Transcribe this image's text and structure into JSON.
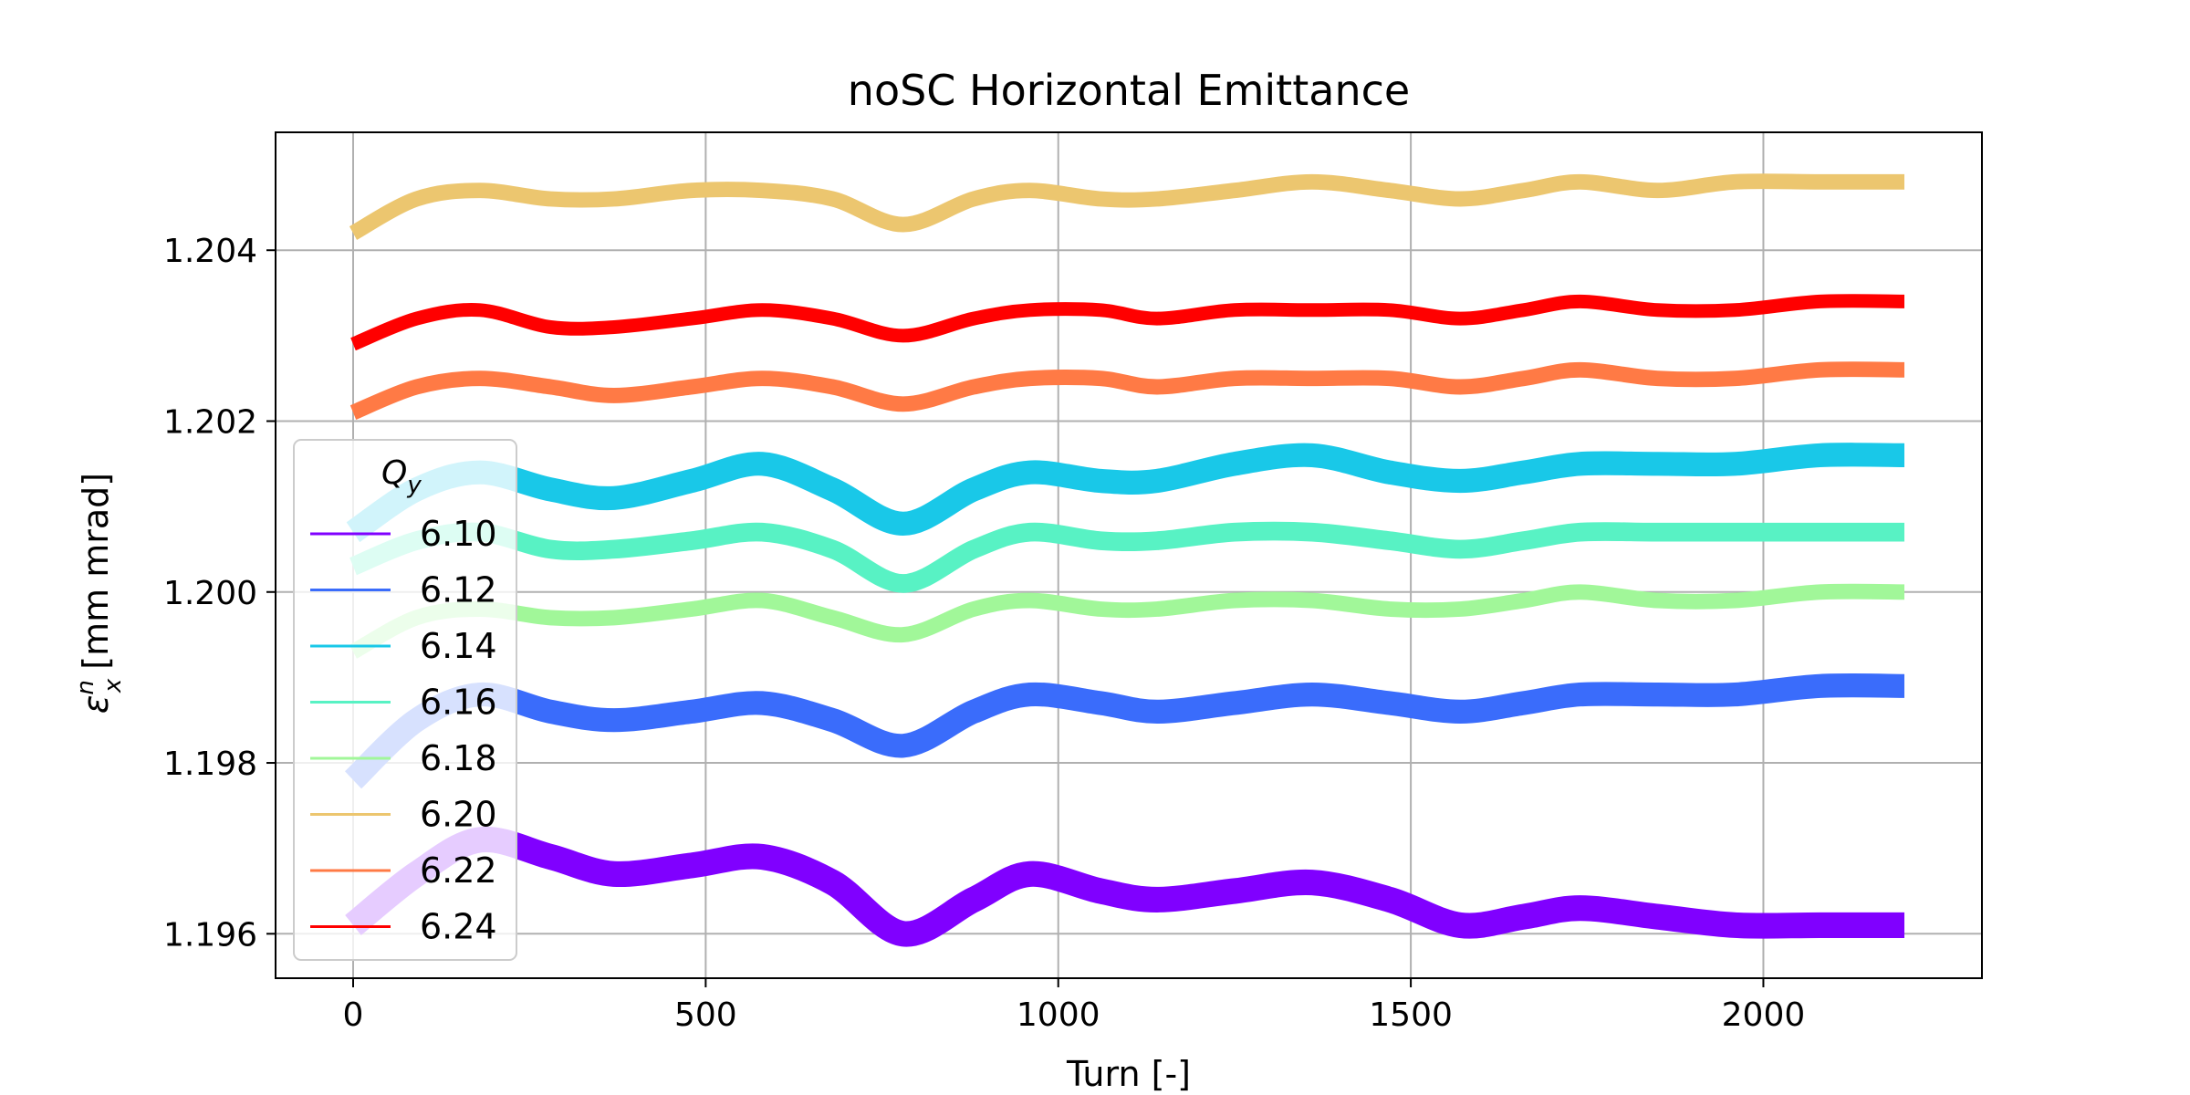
{
  "chart_data": {
    "type": "line",
    "title": "noSC Horizontal Emittance",
    "xlabel": "Turn [-]",
    "ylabel": "[mm mrad]",
    "ylabel_symbol": "ε",
    "ylabel_sup": "n",
    "ylabel_sub": "x",
    "xlim": [
      -110,
      2310
    ],
    "ylim": [
      1.19548,
      1.20538
    ],
    "xticks": [
      0,
      500,
      1000,
      1500,
      2000
    ],
    "xtick_labels": [
      "0",
      "500",
      "1000",
      "1500",
      "2000"
    ],
    "yticks": [
      1.196,
      1.198,
      1.2,
      1.202,
      1.204
    ],
    "ytick_labels": [
      "1.196",
      "1.198",
      "1.200",
      "1.202",
      "1.204"
    ],
    "grid": true,
    "legend": {
      "title": "Q",
      "title_sub": "y",
      "placement": "lower-left"
    },
    "series": [
      {
        "name": "6.10",
        "color": "#8000ff",
        "x": [
          0,
          90,
          180,
          280,
          370,
          480,
          580,
          680,
          780,
          880,
          960,
          1060,
          1140,
          1250,
          1360,
          1470,
          1570,
          1660,
          1740,
          1850,
          1960,
          2080,
          2200
        ],
        "values": [
          1.1961,
          1.1967,
          1.1971,
          1.1969,
          1.1967,
          1.1968,
          1.1969,
          1.1966,
          1.196,
          1.1964,
          1.1967,
          1.1965,
          1.1964,
          1.1965,
          1.1966,
          1.1964,
          1.1961,
          1.1962,
          1.1963,
          1.1962,
          1.1961,
          1.1961,
          1.1961
        ],
        "band": 0.0003
      },
      {
        "name": "6.12",
        "color": "#3a6cfb",
        "x": [
          0,
          90,
          180,
          280,
          370,
          480,
          580,
          680,
          780,
          880,
          960,
          1060,
          1140,
          1250,
          1360,
          1470,
          1570,
          1660,
          1740,
          1850,
          1960,
          2080,
          2200
        ],
        "values": [
          1.1978,
          1.1985,
          1.1988,
          1.1986,
          1.1985,
          1.1986,
          1.1987,
          1.1985,
          1.1982,
          1.1986,
          1.1988,
          1.1987,
          1.1986,
          1.1987,
          1.1988,
          1.1987,
          1.1986,
          1.1987,
          1.1988,
          1.1988,
          1.1988,
          1.1989,
          1.1989
        ],
        "band": 0.00028
      },
      {
        "name": "6.14",
        "color": "#19c8e8",
        "x": [
          0,
          90,
          180,
          280,
          370,
          480,
          580,
          680,
          780,
          880,
          960,
          1060,
          1140,
          1250,
          1360,
          1470,
          1570,
          1660,
          1740,
          1850,
          1960,
          2080,
          2200
        ],
        "values": [
          1.2007,
          1.2012,
          1.2014,
          1.2012,
          1.2011,
          1.2013,
          1.2015,
          1.2012,
          1.2008,
          1.2012,
          1.2014,
          1.2013,
          1.2013,
          1.2015,
          1.2016,
          1.2014,
          1.2013,
          1.2014,
          1.2015,
          1.2015,
          1.2015,
          1.2016,
          1.2016
        ],
        "band": 0.00028
      },
      {
        "name": "6.16",
        "color": "#58f2c4",
        "x": [
          0,
          90,
          180,
          280,
          370,
          480,
          580,
          680,
          780,
          880,
          960,
          1060,
          1140,
          1250,
          1360,
          1470,
          1570,
          1660,
          1740,
          1850,
          1960,
          2080,
          2200
        ],
        "values": [
          1.2003,
          1.2006,
          1.2007,
          1.2005,
          1.2005,
          1.2006,
          1.2007,
          1.2005,
          1.2001,
          1.2005,
          1.2007,
          1.2006,
          1.2006,
          1.2007,
          1.2007,
          1.2006,
          1.2005,
          1.2006,
          1.2007,
          1.2007,
          1.2007,
          1.2007,
          1.2007
        ],
        "band": 0.00022
      },
      {
        "name": "6.18",
        "color": "#a1f799",
        "x": [
          0,
          90,
          180,
          280,
          370,
          480,
          580,
          680,
          780,
          880,
          960,
          1060,
          1140,
          1250,
          1360,
          1470,
          1570,
          1660,
          1740,
          1850,
          1960,
          2080,
          2200
        ],
        "values": [
          1.1993,
          1.1997,
          1.1998,
          1.1997,
          1.1997,
          1.1998,
          1.1999,
          1.1997,
          1.1995,
          1.1998,
          1.1999,
          1.1998,
          1.1998,
          1.1999,
          1.1999,
          1.1998,
          1.1998,
          1.1999,
          1.2,
          1.1999,
          1.1999,
          1.2,
          1.2
        ],
        "band": 0.00018
      },
      {
        "name": "6.20",
        "color": "#ecc66f",
        "x": [
          0,
          90,
          180,
          280,
          370,
          480,
          580,
          680,
          780,
          880,
          960,
          1060,
          1140,
          1250,
          1360,
          1470,
          1570,
          1660,
          1740,
          1850,
          1960,
          2080,
          2200
        ],
        "values": [
          1.2042,
          1.2046,
          1.2047,
          1.2046,
          1.2046,
          1.2047,
          1.2047,
          1.2046,
          1.2043,
          1.2046,
          1.2047,
          1.2046,
          1.2046,
          1.2047,
          1.2048,
          1.2047,
          1.2046,
          1.2047,
          1.2048,
          1.2047,
          1.2048,
          1.2048,
          1.2048
        ],
        "band": 0.00018
      },
      {
        "name": "6.22",
        "color": "#ff7a45",
        "x": [
          0,
          90,
          180,
          280,
          370,
          480,
          580,
          680,
          780,
          880,
          960,
          1060,
          1140,
          1250,
          1360,
          1470,
          1570,
          1660,
          1740,
          1850,
          1960,
          2080,
          2200
        ],
        "values": [
          1.2021,
          1.2024,
          1.2025,
          1.2024,
          1.2023,
          1.2024,
          1.2025,
          1.2024,
          1.2022,
          1.2024,
          1.2025,
          1.2025,
          1.2024,
          1.2025,
          1.2025,
          1.2025,
          1.2024,
          1.2025,
          1.2026,
          1.2025,
          1.2025,
          1.2026,
          1.2026
        ],
        "band": 0.00018
      },
      {
        "name": "6.24",
        "color": "#ff0000",
        "x": [
          0,
          90,
          180,
          280,
          370,
          480,
          580,
          680,
          780,
          880,
          960,
          1060,
          1140,
          1250,
          1360,
          1470,
          1570,
          1660,
          1740,
          1850,
          1960,
          2080,
          2200
        ],
        "values": [
          1.2029,
          1.2032,
          1.2033,
          1.2031,
          1.2031,
          1.2032,
          1.2033,
          1.2032,
          1.203,
          1.2032,
          1.2033,
          1.2033,
          1.2032,
          1.2033,
          1.2033,
          1.2033,
          1.2032,
          1.2033,
          1.2034,
          1.2033,
          1.2033,
          1.2034,
          1.2034
        ],
        "band": 0.00016
      }
    ]
  }
}
